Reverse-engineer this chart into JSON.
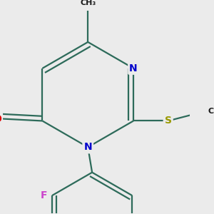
{
  "background_color": "#ebebeb",
  "bond_color": "#2d6b5a",
  "bond_width": 1.6,
  "atom_colors": {
    "O": "#dd0000",
    "N": "#0000cc",
    "S": "#999900",
    "F": "#cc44cc",
    "C": "#1a1a1a"
  },
  "font_size_atom": 10,
  "font_size_methyl": 9
}
